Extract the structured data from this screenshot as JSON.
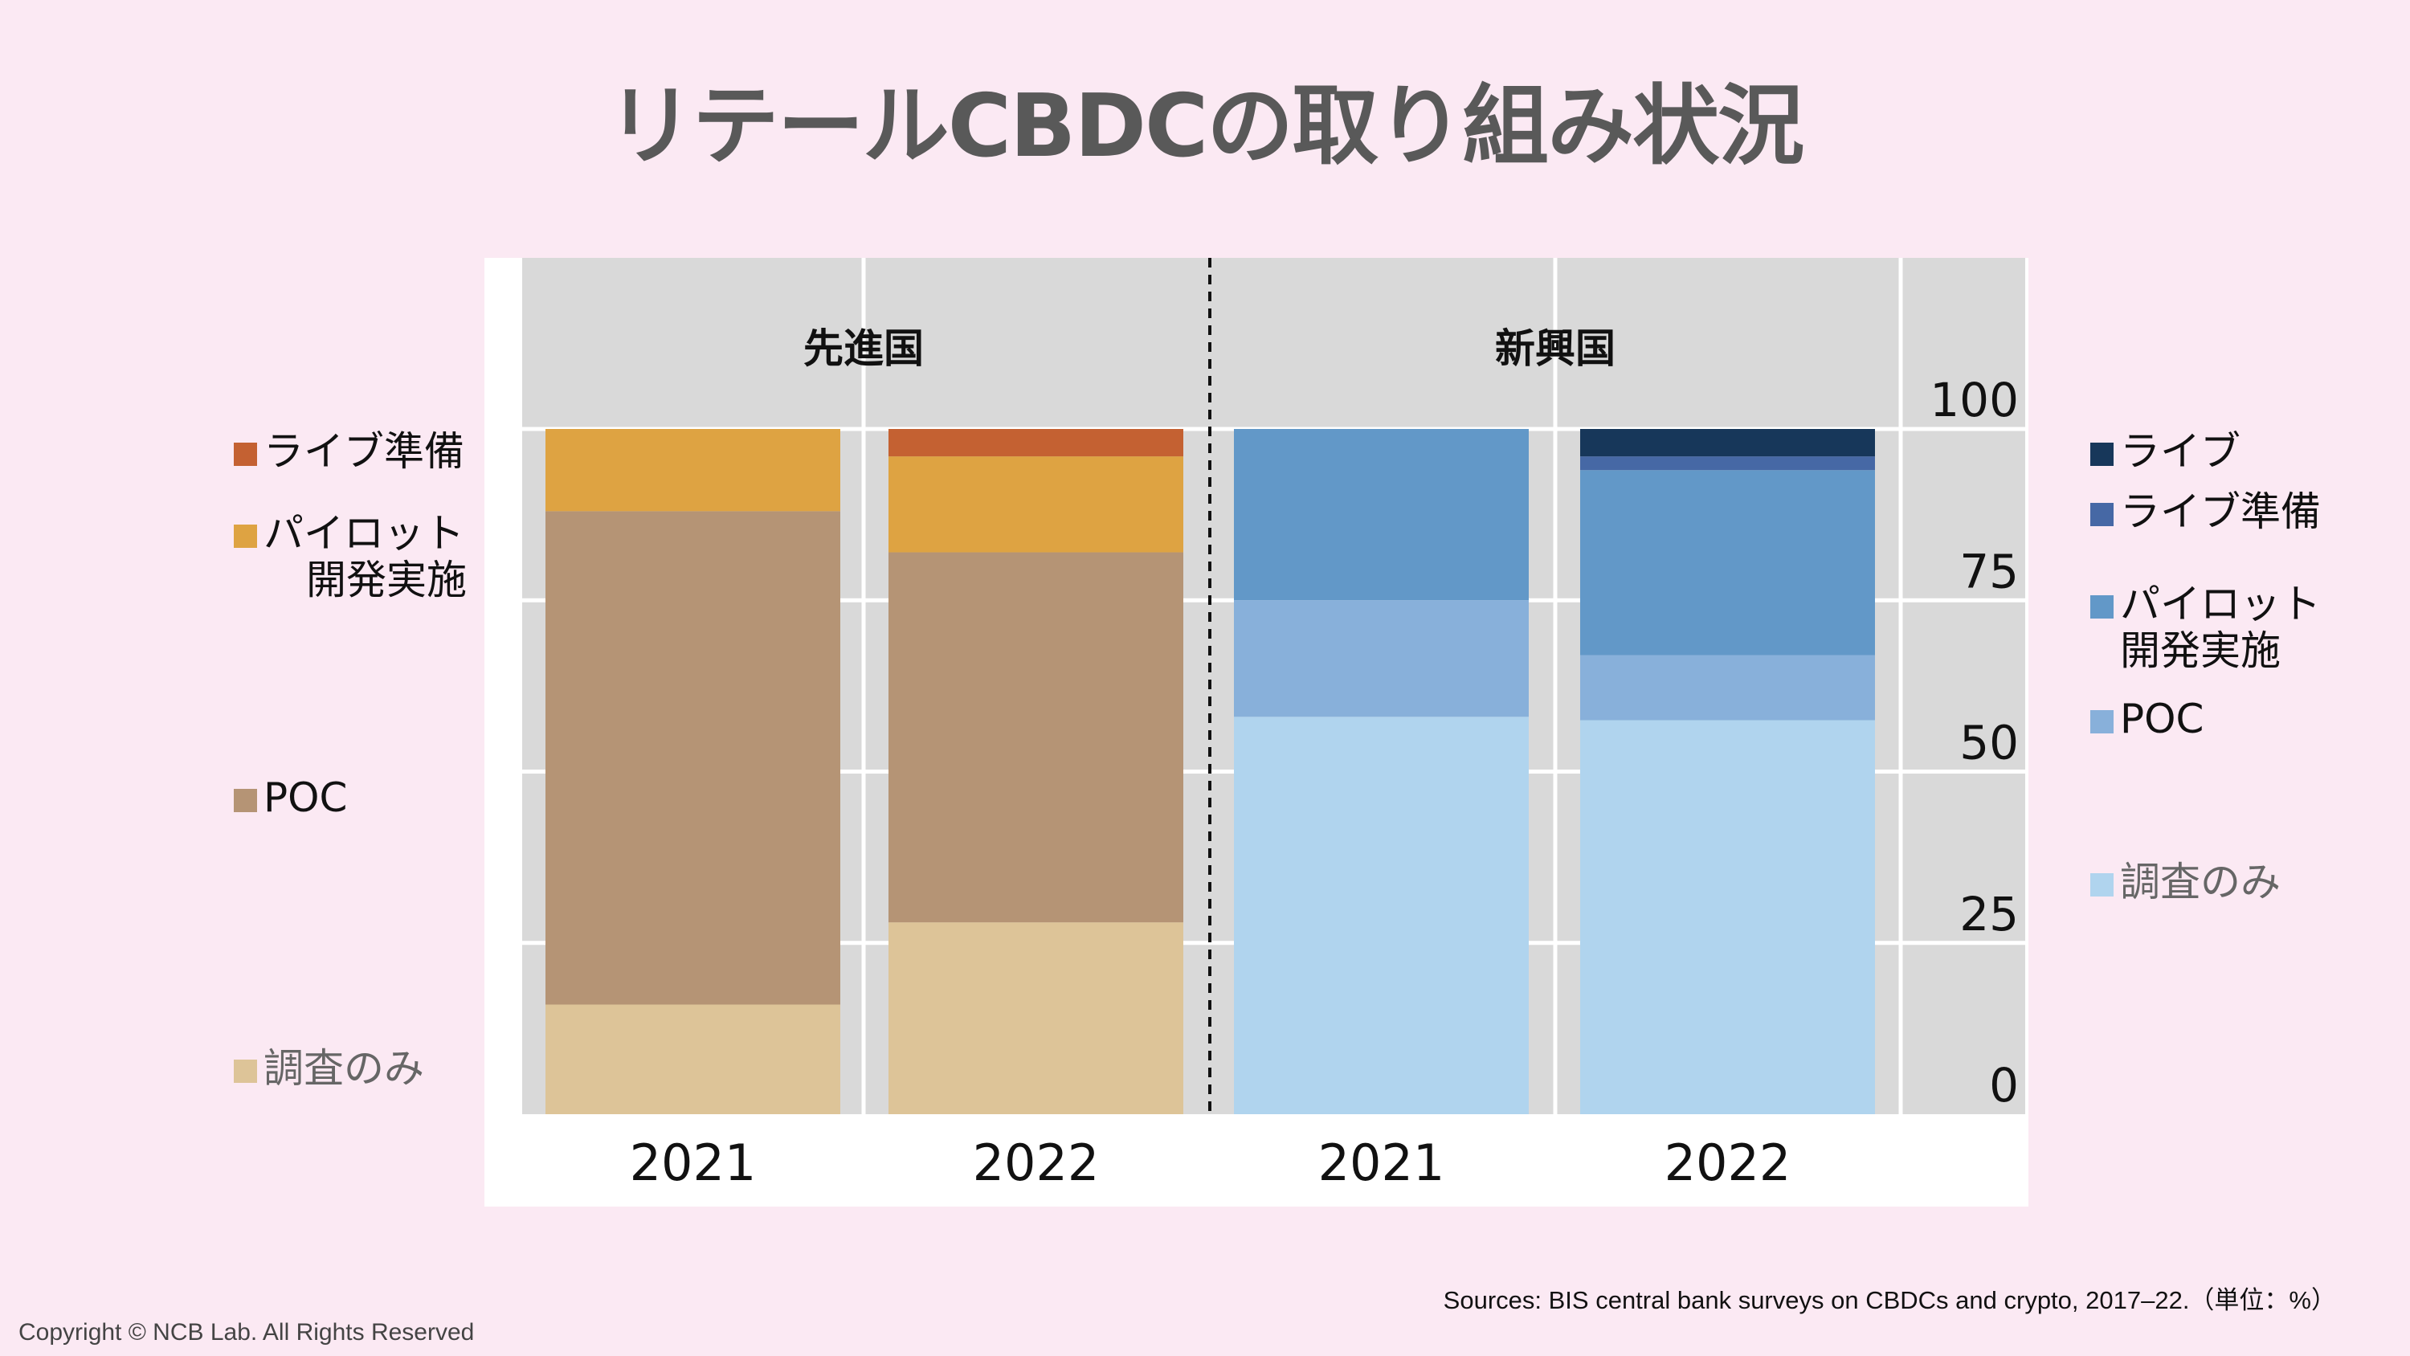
{
  "title": "リテールCBDCの取り組み状況",
  "chart_data": {
    "type": "bar",
    "stacked": true,
    "groups": [
      {
        "name": "先進国",
        "categories": [
          "2021",
          "2022"
        ],
        "series": [
          {
            "name": "調査のみ",
            "color": "#ddc498",
            "values": [
              16,
              28
            ]
          },
          {
            "name": "POC",
            "color": "#b59475",
            "values": [
              72,
              54
            ]
          },
          {
            "name": "パイロット開発実施",
            "color": "#dea342",
            "values": [
              12,
              14
            ]
          },
          {
            "name": "ライブ準備",
            "color": "#c46132",
            "values": [
              0,
              4
            ]
          }
        ]
      },
      {
        "name": "新興国",
        "categories": [
          "2021",
          "2022"
        ],
        "series": [
          {
            "name": "調査のみ",
            "color": "#b0d4ee",
            "values": [
              58,
              57.5
            ]
          },
          {
            "name": "POC",
            "color": "#88b0da",
            "values": [
              17,
              9.5
            ]
          },
          {
            "name": "パイロット開発実施",
            "color": "#6298c8",
            "values": [
              25,
              27
            ]
          },
          {
            "name": "ライブ準備",
            "color": "#4668a5",
            "values": [
              0,
              2
            ]
          },
          {
            "name": "ライブ",
            "color": "#17375a",
            "values": [
              0,
              4
            ]
          }
        ]
      }
    ],
    "ylim": [
      0,
      100
    ],
    "yticks": [
      "0",
      "25",
      "50",
      "75",
      "100"
    ],
    "grid": true,
    "unit": "%"
  },
  "legend_left": [
    {
      "line1": "ライブ準備",
      "color": "#c46132"
    },
    {
      "line1": "パイロット",
      "line2": "開発実施",
      "color": "#dea342"
    },
    {
      "line1": "POC",
      "color": "#b59475"
    },
    {
      "line1": "調査のみ",
      "color": "#ddc498"
    }
  ],
  "legend_right": [
    {
      "line1": "ライブ",
      "color": "#17375a"
    },
    {
      "line1": "ライブ準備",
      "color": "#4668a5"
    },
    {
      "line1": "パイロット",
      "line2": "開発実施",
      "color": "#6298c8"
    },
    {
      "line1": "POC",
      "color": "#88b0da"
    },
    {
      "line1": "調査のみ",
      "color": "#b0d4ee"
    }
  ],
  "source": "Sources: BIS central bank surveys on CBDCs and crypto, 2017–22.（単位：%）",
  "copyright": "Copyright © NCB Lab. All Rights Reserved"
}
